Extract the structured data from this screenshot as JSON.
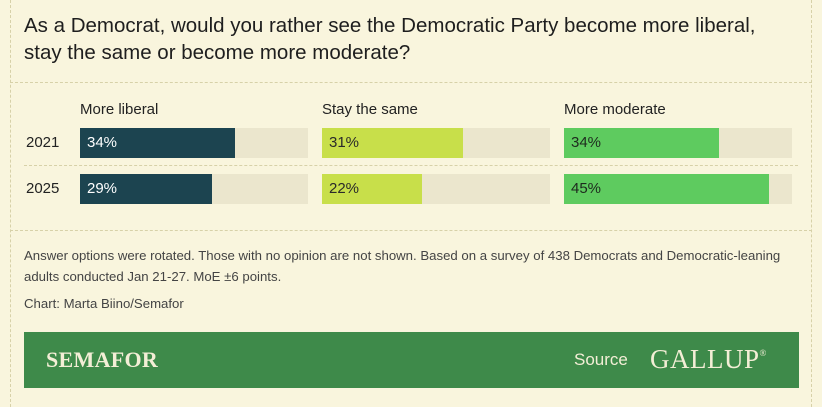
{
  "title": "As a Democrat, would you rather see the Democratic Party become more liberal, stay the same or become more moderate?",
  "chart_data": {
    "type": "bar",
    "title": "As a Democrat, would you rather see the Democratic Party become more liberal, stay the same or become more moderate?",
    "categories": [
      "2021",
      "2025"
    ],
    "series": [
      {
        "name": "More liberal",
        "values": [
          34,
          29
        ],
        "labels": [
          "34%",
          "29%"
        ],
        "color": "#1c4450",
        "text_color": "#ffffff"
      },
      {
        "name": "Stay the same",
        "values": [
          31,
          22
        ],
        "labels": [
          "31%",
          "22%"
        ],
        "color": "#c8df4a",
        "text_color": "#2a2a2a"
      },
      {
        "name": "More moderate",
        "values": [
          34,
          45
        ],
        "labels": [
          "34%",
          "45%"
        ],
        "color": "#5ecb5f",
        "text_color": "#1e2a1e"
      }
    ],
    "xlim": [
      0,
      50
    ],
    "unit": "%",
    "track_color": "#ebe6cd"
  },
  "note": "Answer options were rotated. Those with no opinion are not shown. Based on a survey of 438 Democrats and Democratic-leaning adults conducted Jan 21-27. MoE ±6 points.",
  "credit": "Chart: Marta Biino/Semafor",
  "footer": {
    "brand": "SEMAFOR",
    "source_label": "Source",
    "source_name": "GALLUP",
    "registered_mark": "®",
    "background": "#3e8a4a"
  }
}
